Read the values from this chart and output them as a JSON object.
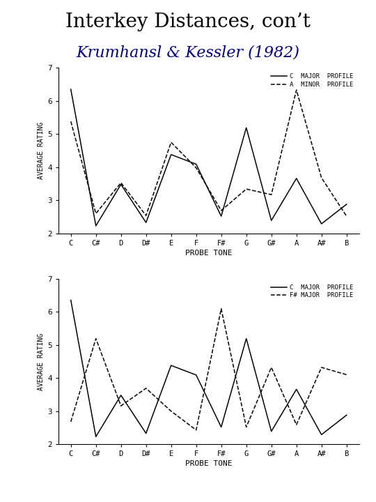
{
  "title": "Interkey Distances, con’t",
  "subtitle": "Krumhansl & Kessler (1982)",
  "title_color": "#000000",
  "subtitle_color": "#000080",
  "background_color": "#ffffff",
  "x_labels": [
    "C",
    "C#",
    "D",
    "D#",
    "E",
    "F",
    "F#",
    "G",
    "G#",
    "A",
    "A#",
    "B"
  ],
  "xlabel": "PROBE TONE",
  "ylabel": "AVERAGE RATING",
  "ylim": [
    2,
    7
  ],
  "yticks": [
    2,
    3,
    4,
    5,
    6,
    7
  ],
  "plot1": {
    "solid_label": "C  MAJOR  PROFILE",
    "dashed_label": "A  MINOR  PROFILE",
    "solid": [
      6.35,
      2.23,
      3.48,
      2.33,
      4.38,
      4.09,
      2.52,
      5.19,
      2.39,
      3.66,
      2.29,
      2.88
    ],
    "dashed": [
      5.38,
      2.6,
      3.53,
      2.54,
      4.75,
      3.98,
      2.69,
      3.34,
      3.17,
      6.33,
      3.68,
      2.52
    ]
  },
  "plot2": {
    "solid_label": "C  MAJOR  PROFILE",
    "dashed_label": "F# MAJOR  PROFILE",
    "solid": [
      6.35,
      2.23,
      3.48,
      2.33,
      4.38,
      4.09,
      2.52,
      5.19,
      2.39,
      3.66,
      2.29,
      2.88
    ],
    "dashed": [
      2.68,
      5.19,
      3.16,
      3.69,
      3.0,
      2.43,
      6.09,
      2.52,
      4.32,
      2.59,
      4.32,
      4.1
    ]
  }
}
